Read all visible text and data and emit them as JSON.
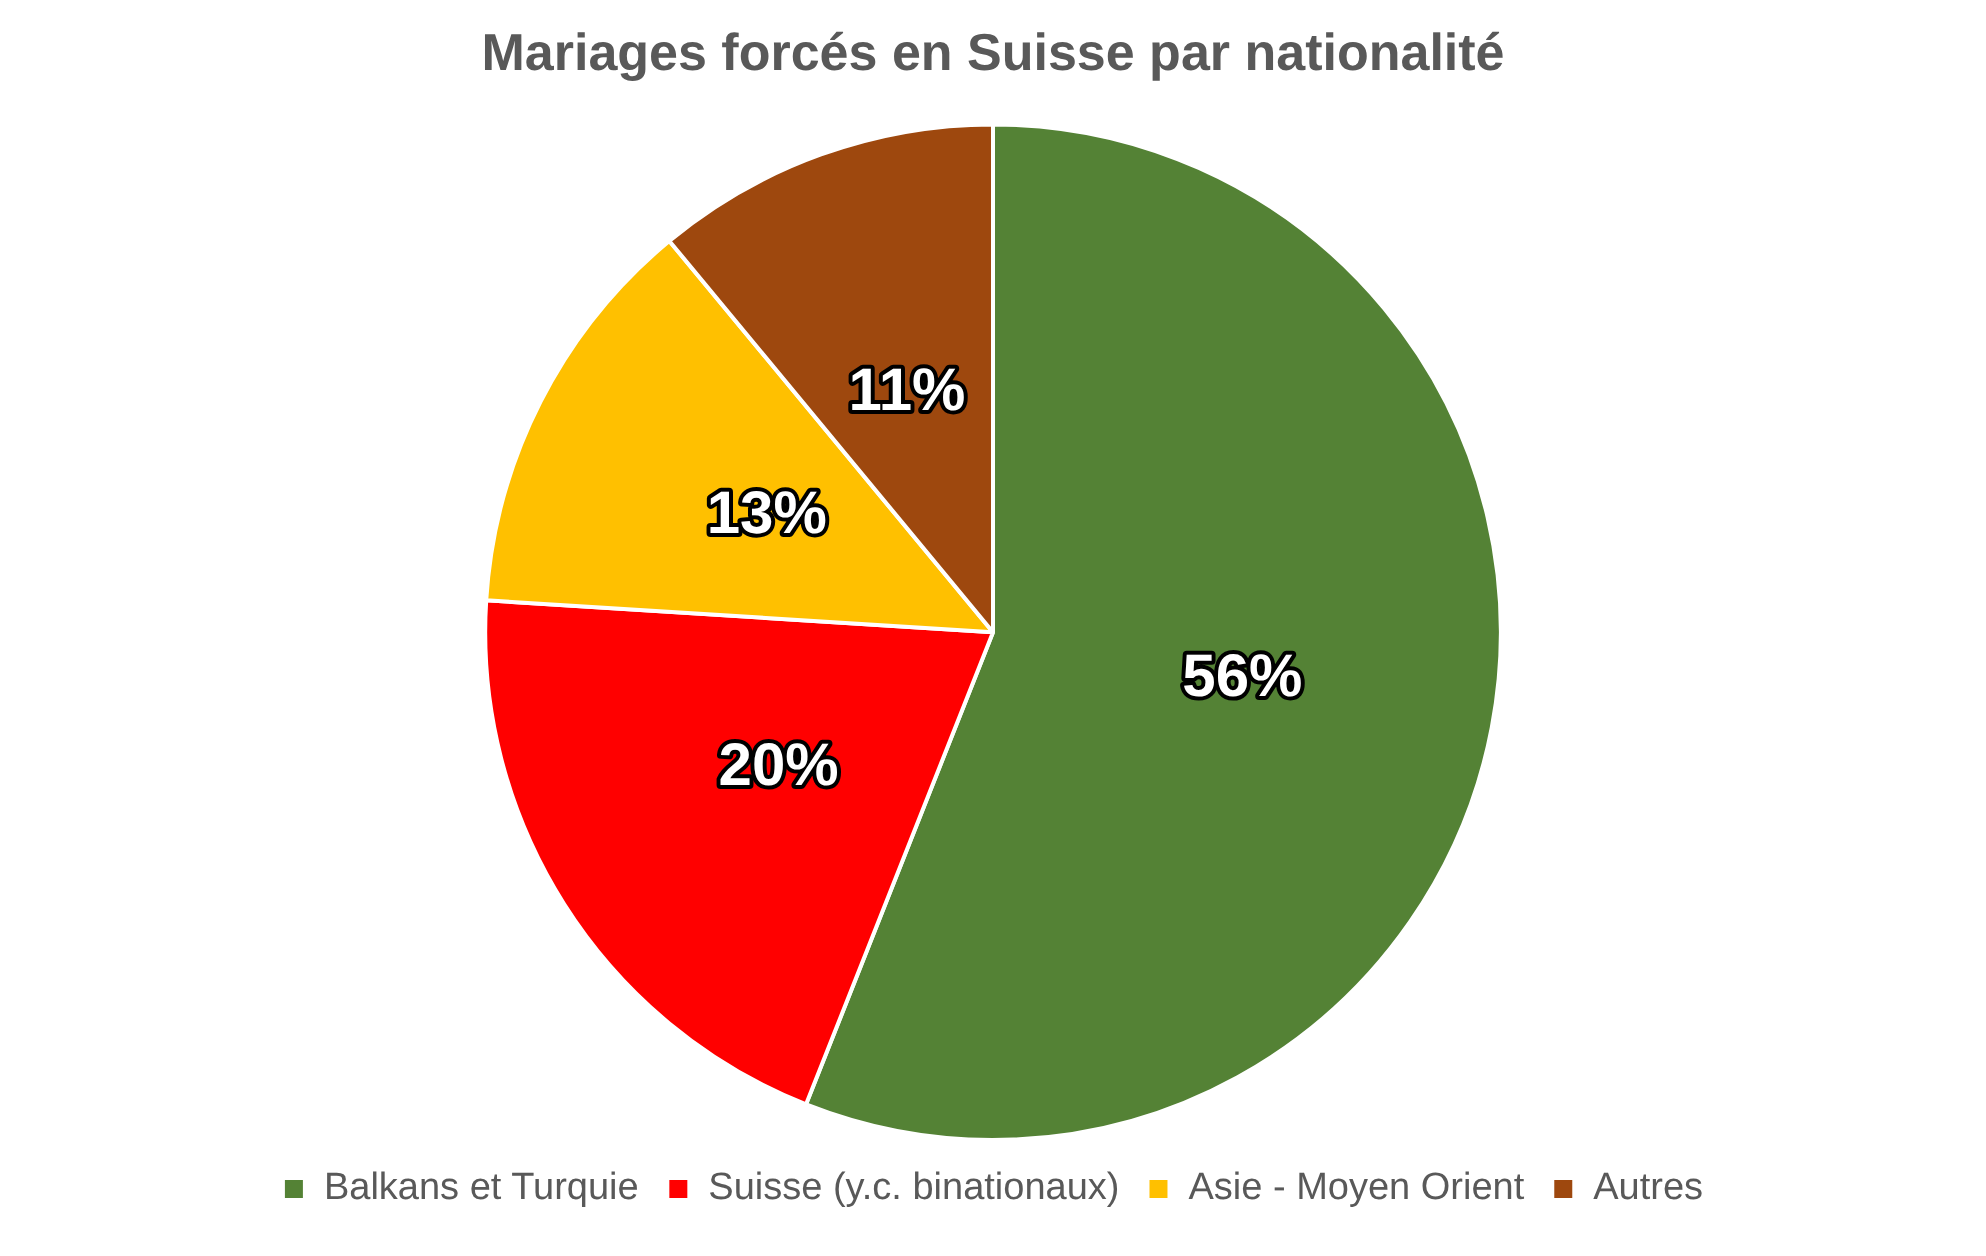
{
  "chart_data": {
    "type": "pie",
    "title": "Mariages forcés en Suisse par nationalité",
    "categories": [
      "Balkans et Turquie",
      "Suisse (y.c. binationaux)",
      "Asie - Moyen Orient",
      "Autres"
    ],
    "values": [
      56,
      20,
      13,
      11
    ],
    "colors": [
      "#548235",
      "#ff0000",
      "#ffc000",
      "#9e480e"
    ],
    "value_labels": [
      "56%",
      "20%",
      "13%",
      "11%"
    ],
    "legend": "bottom"
  }
}
